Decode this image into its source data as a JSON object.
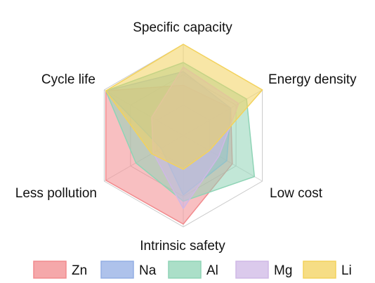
{
  "chart_data": {
    "type": "radar",
    "axes": [
      "Specific capacity",
      "Energy density",
      "Low cost",
      "Intrinsic safety",
      "Less pollution",
      "Cycle life"
    ],
    "range": [
      0,
      1
    ],
    "grid_rings": 3,
    "legend_position": "bottom",
    "series": [
      {
        "name": "Zn",
        "color": "#f28b8e",
        "values": [
          0.55,
          0.6,
          0.62,
          0.97,
          0.98,
          0.98
        ]
      },
      {
        "name": "Na",
        "color": "#93aee4",
        "values": [
          0.7,
          0.6,
          0.55,
          0.65,
          0.28,
          0.98
        ]
      },
      {
        "name": "Al",
        "color": "#8fd4b6",
        "values": [
          0.8,
          0.8,
          0.9,
          0.72,
          0.6,
          0.98
        ]
      },
      {
        "name": "Mg",
        "color": "#cfb8e6",
        "values": [
          0.75,
          0.7,
          0.45,
          0.8,
          0.38,
          0.4
        ]
      },
      {
        "name": "Li",
        "color": "#f3d25c",
        "values": [
          1.0,
          1.0,
          0.33,
          0.37,
          0.4,
          0.98
        ]
      }
    ]
  }
}
